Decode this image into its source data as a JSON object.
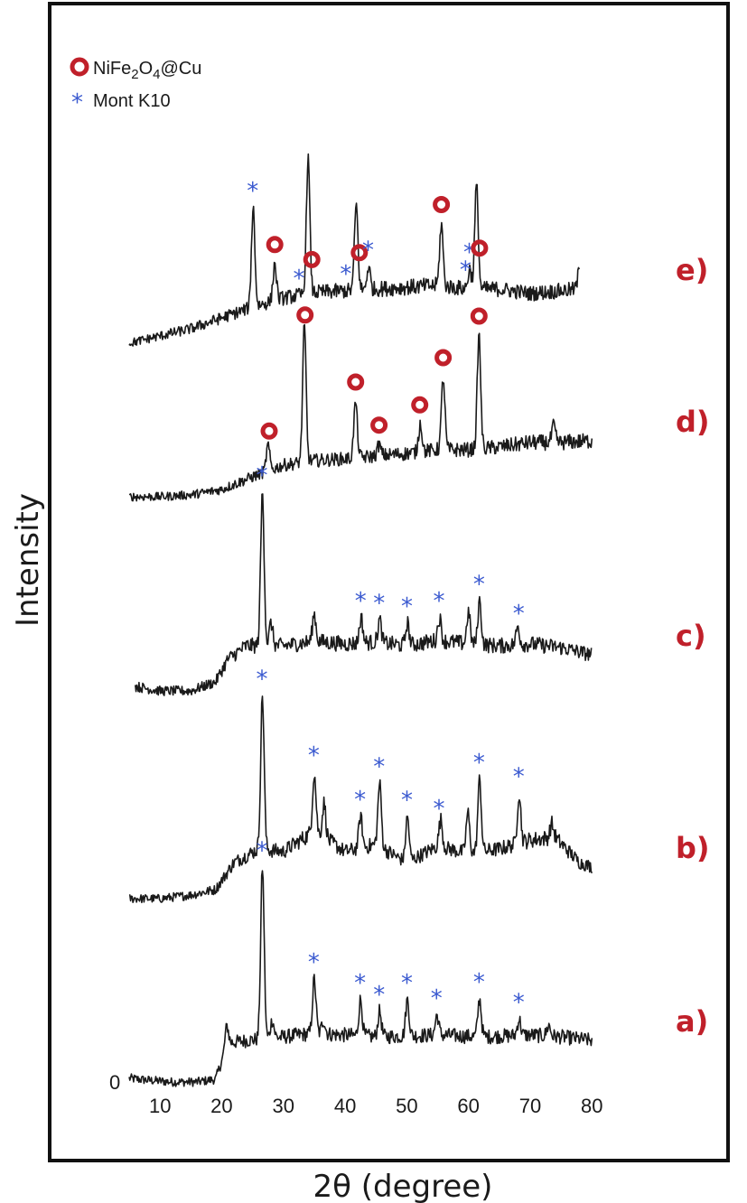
{
  "chart_data": {
    "type": "line",
    "xlabel": "2θ (degree)",
    "ylabel": "Intensity",
    "xlim": [
      5,
      80
    ],
    "xticks": [
      10,
      20,
      30,
      40,
      50,
      60,
      70,
      80
    ],
    "ytick_label": "0",
    "legend": {
      "placement": "top-left",
      "entries": [
        {
          "marker": "circle",
          "text_main": "NiFe",
          "sub1": "2",
          "text_mid": "O",
          "sub2": "4",
          "text_end": "@Cu",
          "color": "#c0202a"
        },
        {
          "marker": "star",
          "text": "Mont K10",
          "color": "#3b5ad0"
        }
      ]
    },
    "colors": {
      "line": "#1a1a1a",
      "circle": "#c0202a",
      "star": "#3b5ad0",
      "label": "#c0202a"
    },
    "series": [
      {
        "name": "a)",
        "offset": 0,
        "start_x": 5,
        "end_x": 80,
        "baseline": [
          [
            5,
            6
          ],
          [
            8,
            4
          ],
          [
            12,
            2
          ],
          [
            16,
            2
          ],
          [
            19,
            5
          ],
          [
            21,
            45
          ],
          [
            24,
            48
          ],
          [
            30,
            52
          ],
          [
            35,
            56
          ],
          [
            45,
            52
          ],
          [
            55,
            54
          ],
          [
            62,
            52
          ],
          [
            70,
            54
          ],
          [
            75,
            52
          ],
          [
            80,
            48
          ]
        ],
        "peaks": [
          [
            20.8,
            22
          ],
          [
            26.6,
            190
          ],
          [
            28.2,
            20
          ],
          [
            35,
            60
          ],
          [
            36.5,
            15
          ],
          [
            42.5,
            40
          ],
          [
            45.6,
            28
          ],
          [
            50.1,
            40
          ],
          [
            54.9,
            22
          ],
          [
            61.8,
            42
          ],
          [
            68.2,
            18
          ],
          [
            73,
            12
          ]
        ],
        "markers": [
          {
            "type": "star",
            "x": 26.6
          },
          {
            "type": "star",
            "x": 35
          },
          {
            "type": "star",
            "x": 42.5
          },
          {
            "type": "star",
            "x": 45.6
          },
          {
            "type": "star",
            "x": 50.1
          },
          {
            "type": "star",
            "x": 54.9
          },
          {
            "type": "star",
            "x": 61.8
          },
          {
            "type": "star",
            "x": 68.2
          }
        ]
      },
      {
        "name": "b)",
        "offset": 205,
        "start_x": 5,
        "end_x": 80,
        "baseline": [
          [
            5,
            0
          ],
          [
            10,
            0
          ],
          [
            15,
            4
          ],
          [
            19,
            10
          ],
          [
            22,
            40
          ],
          [
            26,
            55
          ],
          [
            30,
            52
          ],
          [
            35,
            75
          ],
          [
            40,
            52
          ],
          [
            45,
            60
          ],
          [
            50,
            40
          ],
          [
            55,
            58
          ],
          [
            60,
            50
          ],
          [
            65,
            55
          ],
          [
            70,
            65
          ],
          [
            74,
            68
          ],
          [
            78,
            40
          ],
          [
            80,
            35
          ]
        ],
        "peaks": [
          [
            26.6,
            170
          ],
          [
            35,
            65
          ],
          [
            36.6,
            38
          ],
          [
            42.5,
            35
          ],
          [
            45.6,
            70
          ],
          [
            50.1,
            50
          ],
          [
            55.5,
            30
          ],
          [
            59.9,
            45
          ],
          [
            61.8,
            80
          ],
          [
            68.2,
            55
          ],
          [
            73.5,
            15
          ]
        ],
        "markers": [
          {
            "type": "star",
            "x": 26.6
          },
          {
            "type": "star",
            "x": 35
          },
          {
            "type": "star",
            "x": 42.5
          },
          {
            "type": "star",
            "x": 45.6
          },
          {
            "type": "star",
            "x": 50.1
          },
          {
            "type": "star",
            "x": 55.3
          },
          {
            "type": "star",
            "x": 61.8
          },
          {
            "type": "star",
            "x": 68.2
          }
        ]
      },
      {
        "name": "c)",
        "offset": 425,
        "start_x": 6,
        "end_x": 80,
        "baseline": [
          [
            6,
            15
          ],
          [
            10,
            10
          ],
          [
            15,
            10
          ],
          [
            19,
            20
          ],
          [
            21,
            45
          ],
          [
            24,
            60
          ],
          [
            30,
            60
          ],
          [
            35,
            65
          ],
          [
            40,
            62
          ],
          [
            45,
            64
          ],
          [
            50,
            60
          ],
          [
            55,
            66
          ],
          [
            60,
            62
          ],
          [
            65,
            60
          ],
          [
            70,
            62
          ],
          [
            75,
            58
          ],
          [
            80,
            50
          ]
        ],
        "peaks": [
          [
            26.6,
            170
          ],
          [
            28,
            25
          ],
          [
            35,
            30
          ],
          [
            42.6,
            28
          ],
          [
            45.6,
            25
          ],
          [
            50.1,
            25
          ],
          [
            55.3,
            25
          ],
          [
            60,
            35
          ],
          [
            61.8,
            48
          ],
          [
            68,
            20
          ]
        ],
        "markers": [
          {
            "type": "star",
            "x": 26.6
          },
          {
            "type": "star",
            "x": 42.6
          },
          {
            "type": "star",
            "x": 45.6
          },
          {
            "type": "star",
            "x": 50.1
          },
          {
            "type": "star",
            "x": 55.3
          },
          {
            "type": "star",
            "x": 61.8
          },
          {
            "type": "star",
            "x": 68.2
          }
        ]
      },
      {
        "name": "d)",
        "offset": 650,
        "start_x": 5,
        "end_x": 80,
        "baseline": [
          [
            5,
            0
          ],
          [
            10,
            0
          ],
          [
            15,
            2
          ],
          [
            20,
            8
          ],
          [
            25,
            22
          ],
          [
            30,
            35
          ],
          [
            35,
            40
          ],
          [
            40,
            42
          ],
          [
            45,
            45
          ],
          [
            50,
            48
          ],
          [
            55,
            52
          ],
          [
            60,
            52
          ],
          [
            65,
            55
          ],
          [
            70,
            60
          ],
          [
            75,
            60
          ],
          [
            80,
            62
          ]
        ],
        "peaks": [
          [
            27.5,
            28
          ],
          [
            33.4,
            150
          ],
          [
            41.7,
            62
          ],
          [
            45.5,
            12
          ],
          [
            52.2,
            32
          ],
          [
            55.9,
            80
          ],
          [
            61.7,
            125
          ],
          [
            73.8,
            18
          ]
        ],
        "markers": [
          {
            "type": "circle",
            "x": 27.7
          },
          {
            "type": "circle",
            "x": 33.5
          },
          {
            "type": "circle",
            "x": 41.7
          },
          {
            "type": "circle",
            "x": 45.5
          },
          {
            "type": "circle",
            "x": 52.1
          },
          {
            "type": "circle",
            "x": 55.9
          },
          {
            "type": "circle",
            "x": 61.7
          }
        ]
      },
      {
        "name": "e)",
        "offset": 820,
        "start_x": 5,
        "end_x": 78,
        "baseline": [
          [
            5,
            0
          ],
          [
            10,
            8
          ],
          [
            15,
            16
          ],
          [
            20,
            28
          ],
          [
            25,
            40
          ],
          [
            30,
            50
          ],
          [
            35,
            56
          ],
          [
            40,
            58
          ],
          [
            45,
            60
          ],
          [
            50,
            62
          ],
          [
            55,
            64
          ],
          [
            60,
            60
          ],
          [
            65,
            60
          ],
          [
            70,
            55
          ],
          [
            75,
            58
          ],
          [
            78,
            60
          ]
        ],
        "peaks": [
          [
            25.1,
            110
          ],
          [
            28.6,
            40
          ],
          [
            34,
            150
          ],
          [
            41.8,
            95
          ],
          [
            43.8,
            25
          ],
          [
            55.6,
            68
          ],
          [
            60.2,
            22
          ],
          [
            61.3,
            115
          ],
          [
            78,
            22
          ]
        ],
        "markers": [
          {
            "type": "star",
            "x": 25.1
          },
          {
            "type": "circle",
            "x": 28.6
          },
          {
            "type": "star",
            "x": 32.6
          },
          {
            "type": "circle",
            "x": 34.6
          },
          {
            "type": "star",
            "x": 40.2
          },
          {
            "type": "circle",
            "x": 42.3
          },
          {
            "type": "star",
            "x": 43.8
          },
          {
            "type": "circle",
            "x": 55.6
          },
          {
            "type": "star",
            "x": 59.6
          },
          {
            "type": "star",
            "x": 60.2
          },
          {
            "type": "circle",
            "x": 61.8
          }
        ]
      }
    ]
  }
}
